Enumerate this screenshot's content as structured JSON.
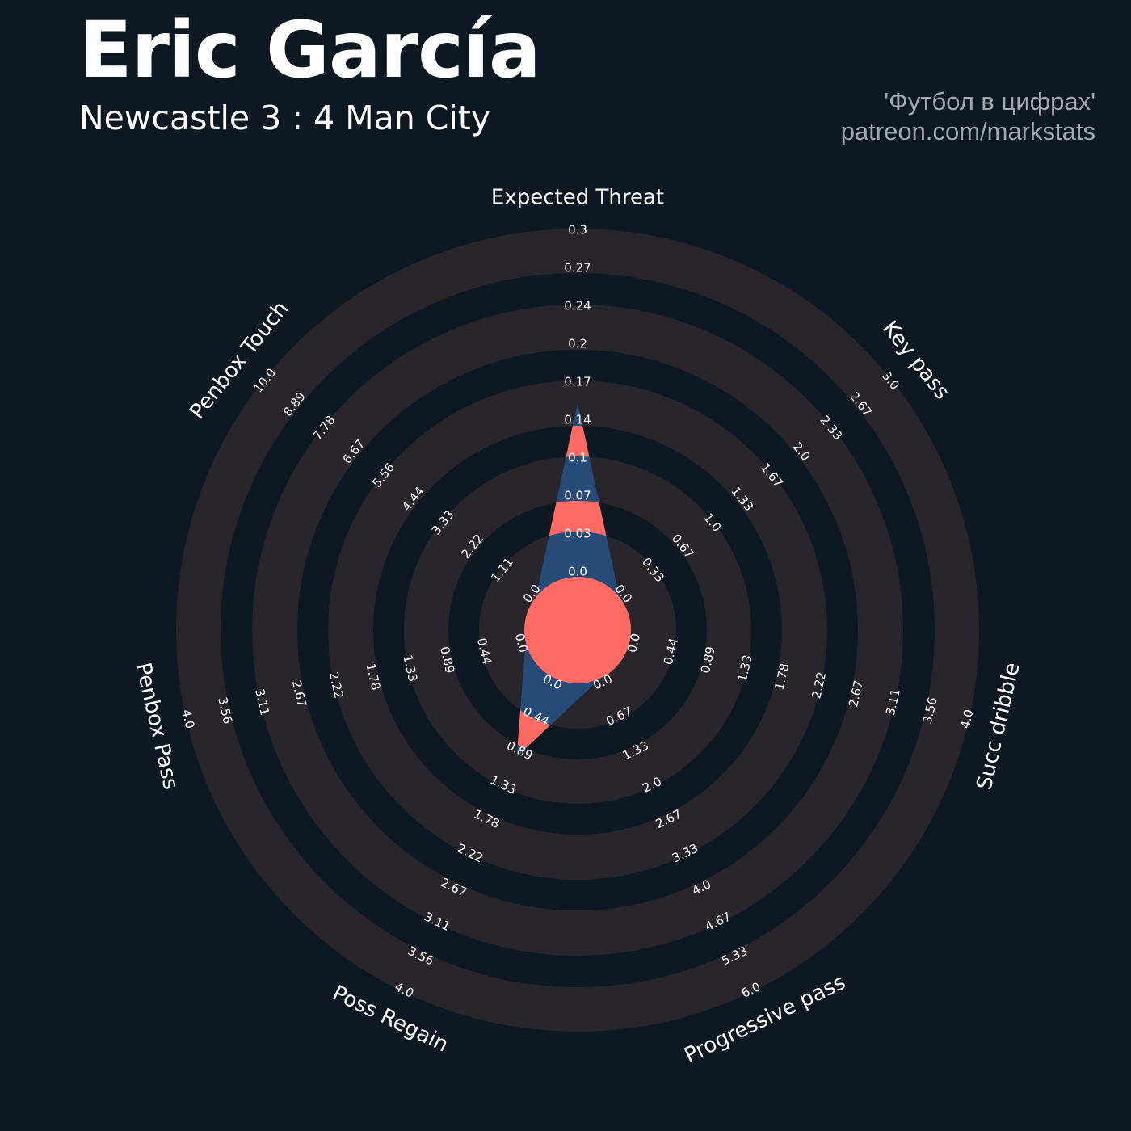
{
  "header": {
    "title": "Eric García",
    "subtitle": "Newcastle 3 : 4 Man City",
    "credit_line1": "'Футбол в цифрах'",
    "credit_line2": "patreon.com/markstats"
  },
  "colors": {
    "background": "#0e1821",
    "ring_band": "#28252b",
    "series_primary": "#ff6b63",
    "series_secondary": "#274b77",
    "text": "#ffffff",
    "credit_text": "#a3a6aa"
  },
  "chart_data": {
    "type": "radar",
    "title": "Eric García",
    "subtitle": "Newcastle 3 : 4 Man City",
    "grid": true,
    "params": [
      {
        "name": "Expected Threat",
        "value": 0.15,
        "range": [
          0,
          0.3
        ],
        "ticks": [
          "0.0",
          "0.03",
          "0.07",
          "0.1",
          "0.14",
          "0.17",
          "0.2",
          "0.24",
          "0.27",
          "0.3"
        ]
      },
      {
        "name": "Key pass",
        "value": 0,
        "range": [
          0,
          3.0
        ],
        "ticks": [
          "0.0",
          "0.33",
          "0.67",
          "1.0",
          "1.33",
          "1.67",
          "2.0",
          "2.33",
          "2.67",
          "3.0"
        ]
      },
      {
        "name": "Succ dribble",
        "value": 0,
        "range": [
          0,
          4.0
        ],
        "ticks": [
          "0.0",
          "0.44",
          "0.89",
          "1.33",
          "1.78",
          "2.22",
          "2.67",
          "3.11",
          "3.56",
          "4.0"
        ]
      },
      {
        "name": "Progressive pass",
        "value": 0,
        "range": [
          0,
          6.0
        ],
        "ticks": [
          "0.0",
          "0.67",
          "1.33",
          "2.0",
          "2.67",
          "3.33",
          "4.0",
          "4.67",
          "5.33",
          "6.0"
        ]
      },
      {
        "name": "Poss Regain",
        "value": 1.0,
        "range": [
          0,
          4.0
        ],
        "ticks": [
          "0.0",
          "0.44",
          "0.89",
          "1.33",
          "1.78",
          "2.22",
          "2.67",
          "3.11",
          "3.56",
          "4.0"
        ]
      },
      {
        "name": "Penbox Pass",
        "value": 0,
        "range": [
          0,
          4.0
        ],
        "ticks": [
          "0.0",
          "0.44",
          "0.89",
          "1.33",
          "1.78",
          "2.22",
          "2.67",
          "3.11",
          "3.56",
          "4.0"
        ]
      },
      {
        "name": "Penbox Touch",
        "value": 0,
        "range": [
          0,
          10.0
        ],
        "ticks": [
          "0.0",
          "1.11",
          "2.22",
          "3.33",
          "4.44",
          "5.56",
          "6.67",
          "7.78",
          "8.89",
          "10.0"
        ]
      }
    ]
  }
}
